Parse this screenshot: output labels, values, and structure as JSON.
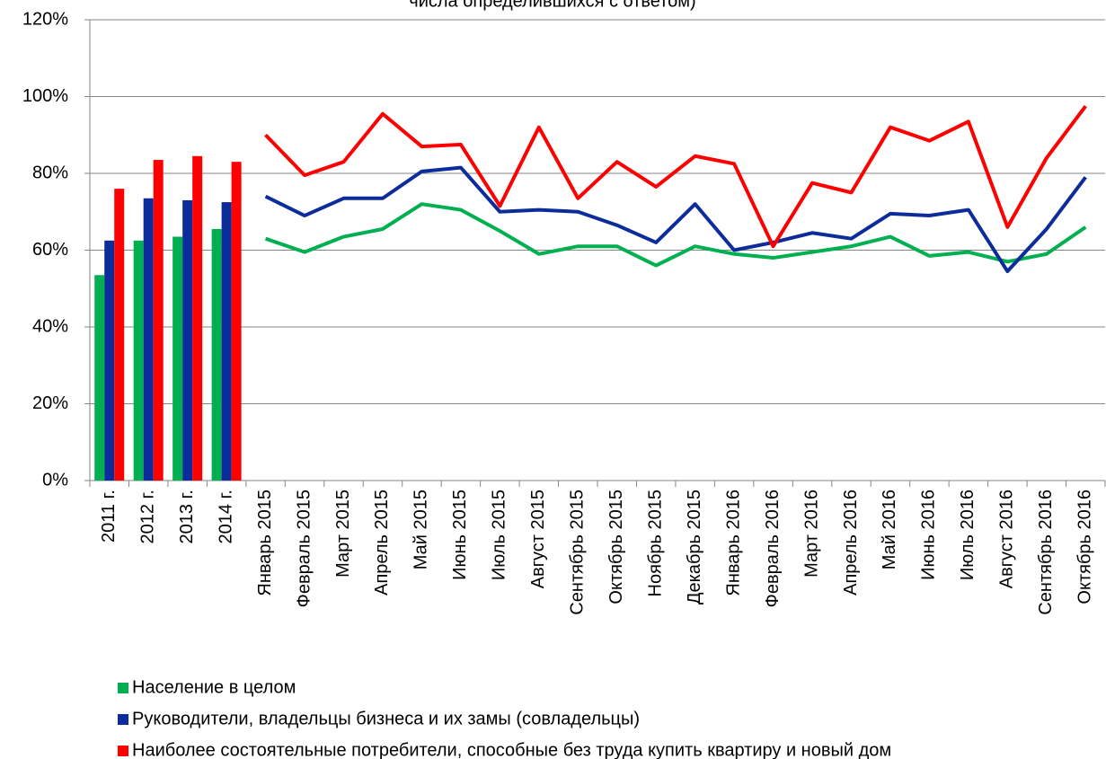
{
  "chart_data": {
    "type": "combo",
    "title": "числа определившихся с ответом)",
    "categories": [
      "2011 г.",
      "2012 г.",
      "2013 г.",
      "2014 г.",
      "Январь 2015",
      "Февраль 2015",
      "Март 2015",
      "Апрель 2015",
      "Май 2015",
      "Июнь 2015",
      "Июль 2015",
      "Август 2015",
      "Сентябрь 2015",
      "Октябрь 2015",
      "Ноябрь 2015",
      "Декабрь 2015",
      "Январь 2016",
      "Февраль 2016",
      "Март 2016",
      "Апрель 2016",
      "Май 2016",
      "Июнь 2016",
      "Июль 2016",
      "Август 2016",
      "Сентябрь 2016",
      "Октябрь 2016"
    ],
    "category_marks": [
      "bar",
      "bar",
      "bar",
      "bar",
      "line",
      "line",
      "line",
      "line",
      "line",
      "line",
      "line",
      "line",
      "line",
      "line",
      "line",
      "line",
      "line",
      "line",
      "line",
      "line",
      "line",
      "line",
      "line",
      "line",
      "line",
      "line"
    ],
    "series": [
      {
        "name": "Население в целом",
        "color": "#00b050",
        "values": [
          53.5,
          62.5,
          63.5,
          65.5,
          63,
          59.5,
          63.5,
          65.5,
          72,
          70.5,
          65,
          59,
          61,
          61,
          56,
          61,
          59,
          58,
          59.5,
          61,
          63.5,
          58.5,
          59.5,
          57,
          59,
          66
        ]
      },
      {
        "name": "Руководители, владельцы бизнеса и их замы (совладельцы)",
        "color": "#0c2c9c",
        "values": [
          62.5,
          73.5,
          73,
          72.5,
          74,
          69,
          73.5,
          73.5,
          80.5,
          81.5,
          70,
          70.5,
          70,
          66.5,
          62,
          72,
          60,
          62,
          64.5,
          63,
          69.5,
          69,
          70.5,
          54.5,
          65.5,
          79
        ]
      },
      {
        "name": "Наиболее состоятельные потребители, способные без труда купить квартиру и новый дом",
        "color": "#ff0000",
        "values": [
          76,
          83.5,
          84.5,
          83,
          90,
          79.5,
          83,
          95.5,
          87,
          87.5,
          71.5,
          92,
          73.5,
          83,
          76.5,
          84.5,
          82.5,
          61,
          77.5,
          75,
          92,
          88.5,
          93.5,
          66,
          84,
          97.5
        ]
      }
    ],
    "ylim": [
      0,
      120
    ],
    "yticks": [
      {
        "value": 0,
        "label": "0%"
      },
      {
        "value": 20,
        "label": "20%"
      },
      {
        "value": 40,
        "label": "40%"
      },
      {
        "value": 60,
        "label": "60%"
      },
      {
        "value": 80,
        "label": "80%"
      },
      {
        "value": 100,
        "label": "100%"
      },
      {
        "value": 120,
        "label": "120%"
      }
    ],
    "grid": true
  }
}
